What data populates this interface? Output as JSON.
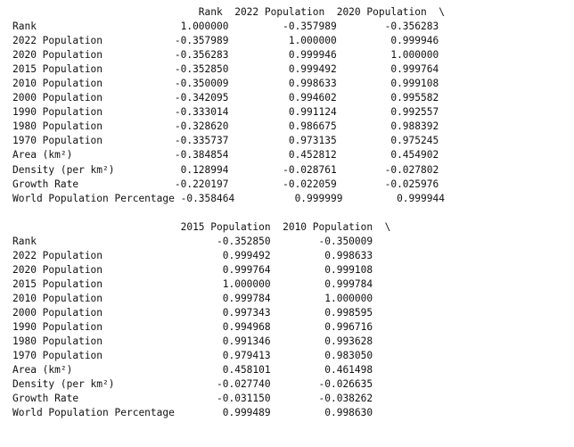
{
  "output": {
    "blocks": [
      {
        "header_lines": [
          "                               Rank  2022 Population  2020 Population  \\"
        ],
        "row_lines": [
          "Rank                        1.000000         -0.357989        -0.356283",
          "2022 Population            -0.357989          1.000000         0.999946",
          "2020 Population            -0.356283          0.999946         1.000000",
          "2015 Population            -0.352850          0.999492         0.999764",
          "2010 Population            -0.350009          0.998633         0.999108",
          "2000 Population            -0.342095          0.994602         0.995582",
          "1990 Population            -0.333014          0.991124         0.992557",
          "1980 Population            -0.328620          0.986675         0.988392",
          "1970 Population            -0.335737          0.973135         0.975245",
          "Area (km²)                 -0.384854          0.452812         0.454902",
          "Density (per km²)           0.128994         -0.028761        -0.027802",
          "Growth Rate                -0.220197         -0.022059        -0.025976",
          "World Population Percentage -0.358464          0.999999         0.999944"
        ]
      },
      {
        "header_lines": [
          "                            2015 Population  2010 Population  \\"
        ],
        "row_lines": [
          "Rank                              -0.352850        -0.350009",
          "2022 Population                    0.999492         0.998633",
          "2020 Population                    0.999764         0.999108",
          "2015 Population                    1.000000         0.999784",
          "2010 Population                    0.999784         1.000000",
          "2000 Population                    0.997343         0.998595",
          "1990 Population                    0.994968         0.996716",
          "1980 Population                    0.991346         0.993628",
          "1970 Population                    0.979413         0.983050",
          "Area (km²)                         0.458101         0.461498",
          "Density (per km²)                 -0.027740        -0.026635",
          "Growth Rate                       -0.031150        -0.038262",
          "World Population Percentage        0.999489         0.998630"
        ]
      }
    ]
  }
}
